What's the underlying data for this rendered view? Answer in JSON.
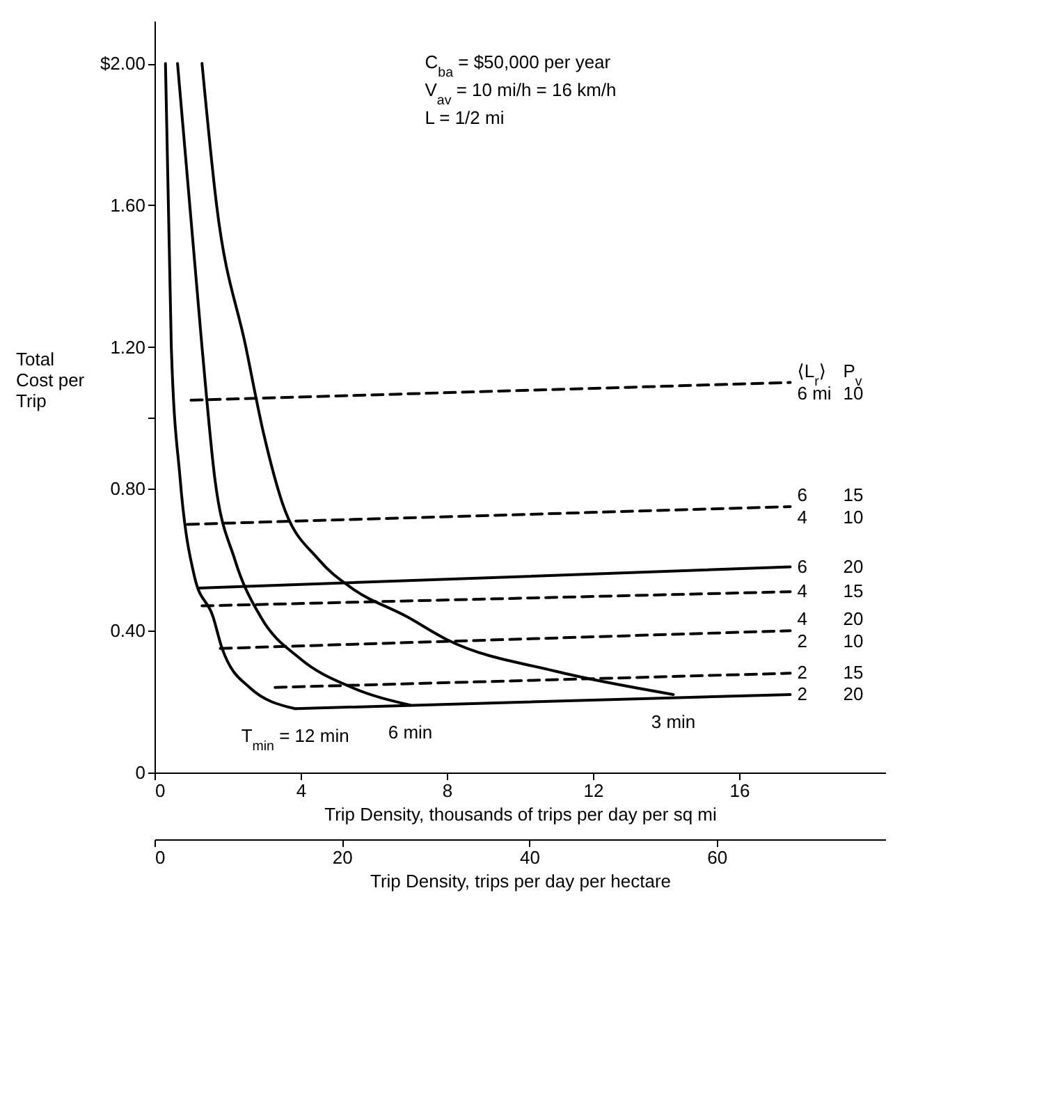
{
  "chart_data": {
    "type": "line",
    "xlabel": "Trip Density, thousands of trips per day per sq mi",
    "ylabel": "Total Cost per Trip",
    "x2label": "Trip Density, trips per day per hectare",
    "xlim": [
      0,
      20
    ],
    "xticks": [
      0,
      4,
      8,
      12,
      16
    ],
    "x2lim": [
      0,
      78
    ],
    "x2ticks": [
      0,
      20,
      40,
      60
    ],
    "ylim": [
      0,
      2.12
    ],
    "yticks": [
      0,
      {
        "value": 0.4,
        "label": "0.40"
      },
      {
        "value": 0.8,
        "label": "0.80"
      },
      {
        "value": 1.0,
        "label": null
      },
      {
        "value": 1.2,
        "label": "1.20"
      },
      {
        "value": 1.6,
        "label": "1.60"
      },
      {
        "value": 2.0,
        "label": "$2.00"
      }
    ],
    "grid": false,
    "series": [
      {
        "color": "#000000",
        "line_style": "solid",
        "x": [
          0.3,
          0.46,
          0.7,
          1.1,
          1.6,
          1.85,
          2.6,
          3.85
        ],
        "values": [
          2.0,
          1.2,
          0.83,
          0.55,
          0.44,
          0.35,
          0.24,
          0.18
        ]
      },
      {
        "color": "#000000",
        "line_style": "solid",
        "x": [
          0.63,
          1.3,
          1.65,
          2.2,
          2.9,
          4.0,
          5.4,
          7.0
        ],
        "values": [
          2.0,
          1.2,
          0.83,
          0.6,
          0.44,
          0.32,
          0.24,
          0.19
        ]
      },
      {
        "color": "#000000",
        "line_style": "solid",
        "x": [
          1.3,
          1.7,
          2.5,
          3.0,
          3.5,
          4.5,
          5.4,
          6.9,
          8.0,
          11.0,
          14.2
        ],
        "values": [
          2.0,
          1.6,
          1.2,
          0.95,
          0.76,
          0.6,
          0.52,
          0.44,
          0.375,
          0.285,
          0.22
        ]
      },
      {
        "color": "#000000",
        "line_style": "dashed",
        "x": [
          1.0,
          17.4
        ],
        "values": [
          1.05,
          1.1
        ]
      },
      {
        "color": "#000000",
        "line_style": "dashed",
        "x": [
          0.9,
          17.4
        ],
        "values": [
          0.7,
          0.75
        ]
      },
      {
        "color": "#000000",
        "line_style": "solid",
        "x": [
          1.2,
          17.4
        ],
        "values": [
          0.52,
          0.58
        ]
      },
      {
        "color": "#000000",
        "line_style": "dashed",
        "x": [
          1.3,
          17.4
        ],
        "values": [
          0.47,
          0.51
        ]
      },
      {
        "color": "#000000",
        "line_style": "dashed",
        "x": [
          1.8,
          17.4
        ],
        "values": [
          0.35,
          0.4
        ]
      },
      {
        "color": "#000000",
        "line_style": "dashed",
        "x": [
          3.3,
          17.4
        ],
        "values": [
          0.24,
          0.28
        ]
      },
      {
        "color": "#000000",
        "line_style": "solid",
        "x": [
          3.85,
          17.4
        ],
        "values": [
          0.18,
          0.22
        ]
      }
    ],
    "annotations": [
      "C$_{ba}$ = $50,000 per year",
      "V$_{av}$ = 10 mi/h = 16 km/h",
      "L = 1/2 mi",
      {
        "text": "⟨L$_{r}$⟩",
        "x": 17.4,
        "y": 1.1
      },
      {
        "text": "P$_{v}$",
        "x": 17.4,
        "y": 1.1
      },
      {
        "text": "6 mi",
        "x": 17.4,
        "y": 1.1
      },
      {
        "text": "10",
        "x": 17.4,
        "y": 1.1
      },
      {
        "text": "6",
        "x": 17.4,
        "y": 0.75
      },
      {
        "text": "15",
        "x": 17.4,
        "y": 0.75
      },
      {
        "text": "4",
        "x": 17.4,
        "y": 0.75
      },
      {
        "text": "10",
        "x": 17.4,
        "y": 0.75
      },
      {
        "text": "6",
        "x": 17.4,
        "y": 0.58
      },
      {
        "text": "20",
        "x": 17.4,
        "y": 0.58
      },
      {
        "text": "4",
        "x": 17.4,
        "y": 0.51
      },
      {
        "text": "15",
        "x": 17.4,
        "y": 0.51
      },
      {
        "text": "4",
        "x": 17.4,
        "y": 0.4
      },
      {
        "text": "20",
        "x": 17.4,
        "y": 0.4
      },
      {
        "text": "2",
        "x": 17.4,
        "y": 0.4
      },
      {
        "text": "10",
        "x": 17.4,
        "y": 0.4
      },
      {
        "text": "2",
        "x": 17.4,
        "y": 0.28
      },
      {
        "text": "15",
        "x": 17.4,
        "y": 0.28
      },
      {
        "text": "2",
        "x": 17.4,
        "y": 0.22
      },
      {
        "text": "20",
        "x": 17.4,
        "y": 0.22
      },
      {
        "text": "T$_{min}$ = 12 min",
        "x": 3.85,
        "y": 0.18
      },
      {
        "text": "6 min",
        "x": 7.0,
        "y": 0.19
      },
      {
        "text": "3 min",
        "x": 14.2,
        "y": 0.22
      }
    ]
  }
}
